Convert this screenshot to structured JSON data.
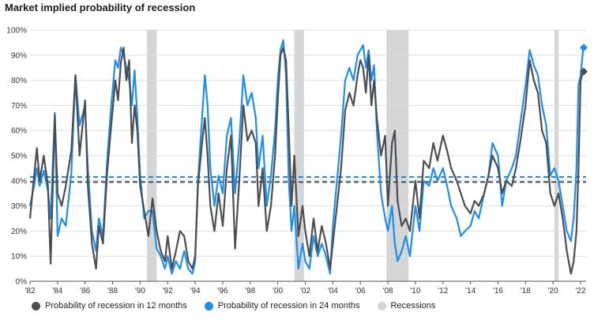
{
  "title": "Market implied probability of recession",
  "legend": {
    "s12": "Probability of recession in 12 months",
    "s24": "Probability of recession in 24 months",
    "rec": "Recessions"
  },
  "colors": {
    "s12": "#4a4d52",
    "s24": "#1f8ee8",
    "rec": "#d4d5d7"
  },
  "chart_data": {
    "type": "line",
    "xlim": [
      1982,
      2022.4
    ],
    "ylim": [
      0,
      100
    ],
    "yticks": [
      "0%",
      "10%",
      "20%",
      "30%",
      "40%",
      "50%",
      "60%",
      "70%",
      "80%",
      "90%",
      "100%"
    ],
    "xticks": [
      {
        "x": 1982,
        "label": "'82"
      },
      {
        "x": 1984,
        "label": "'84"
      },
      {
        "x": 1986,
        "label": "'86"
      },
      {
        "x": 1988,
        "label": "'88"
      },
      {
        "x": 1990,
        "label": "'90"
      },
      {
        "x": 1992,
        "label": "'92"
      },
      {
        "x": 1994,
        "label": "'94"
      },
      {
        "x": 1996,
        "label": "'96"
      },
      {
        "x": 1998,
        "label": "'98"
      },
      {
        "x": 2000,
        "label": "'00"
      },
      {
        "x": 2002,
        "label": "'02"
      },
      {
        "x": 2004,
        "label": "'04"
      },
      {
        "x": 2006,
        "label": "'06"
      },
      {
        "x": 2008,
        "label": "'08"
      },
      {
        "x": 2010,
        "label": "'10"
      },
      {
        "x": 2012,
        "label": "'12"
      },
      {
        "x": 2014,
        "label": "'14"
      },
      {
        "x": 2016,
        "label": "'16"
      },
      {
        "x": 2018,
        "label": "'18"
      },
      {
        "x": 2020,
        "label": "'20"
      },
      {
        "x": 2022,
        "label": "'22"
      }
    ],
    "recessions": [
      [
        1990.5,
        1991.2
      ],
      [
        2001.2,
        2001.9
      ],
      [
        2007.9,
        2009.5
      ],
      [
        2020.1,
        2020.4
      ]
    ],
    "averages": {
      "s12": 39.5,
      "s24": 41.5
    },
    "latest": {
      "s12": 83.5,
      "s24": 93
    },
    "series": [
      {
        "name": "Probability of recession in 12 months",
        "key": "s12",
        "points": [
          [
            1982,
            25
          ],
          [
            1982.3,
            42
          ],
          [
            1982.5,
            53
          ],
          [
            1982.7,
            40
          ],
          [
            1983,
            50
          ],
          [
            1983.3,
            38
          ],
          [
            1983.5,
            7
          ],
          [
            1983.8,
            66
          ],
          [
            1984,
            35
          ],
          [
            1984.3,
            30
          ],
          [
            1984.6,
            38
          ],
          [
            1985,
            52
          ],
          [
            1985.3,
            82
          ],
          [
            1985.6,
            50
          ],
          [
            1986,
            72
          ],
          [
            1986.2,
            38
          ],
          [
            1986.5,
            15
          ],
          [
            1986.8,
            5
          ],
          [
            1987,
            22
          ],
          [
            1987.3,
            15
          ],
          [
            1987.6,
            43
          ],
          [
            1987.9,
            62
          ],
          [
            1988.2,
            80
          ],
          [
            1988.4,
            72
          ],
          [
            1988.6,
            87
          ],
          [
            1988.8,
            93
          ],
          [
            1989,
            80
          ],
          [
            1989.2,
            88
          ],
          [
            1989.4,
            55
          ],
          [
            1989.6,
            70
          ],
          [
            1989.8,
            60
          ],
          [
            1990,
            38
          ],
          [
            1990.3,
            28
          ],
          [
            1990.6,
            18
          ],
          [
            1990.9,
            33
          ],
          [
            1991.2,
            20
          ],
          [
            1991.5,
            12
          ],
          [
            1991.8,
            8
          ],
          [
            1992,
            18
          ],
          [
            1992.3,
            5
          ],
          [
            1992.6,
            12
          ],
          [
            1992.9,
            20
          ],
          [
            1993.2,
            18
          ],
          [
            1993.5,
            8
          ],
          [
            1993.8,
            5
          ],
          [
            1994,
            10
          ],
          [
            1994.2,
            38
          ],
          [
            1994.5,
            55
          ],
          [
            1994.7,
            65
          ],
          [
            1994.9,
            50
          ],
          [
            1995.1,
            30
          ],
          [
            1995.4,
            20
          ],
          [
            1995.7,
            35
          ],
          [
            1996,
            22
          ],
          [
            1996.3,
            45
          ],
          [
            1996.6,
            58
          ],
          [
            1996.9,
            13
          ],
          [
            1997.2,
            40
          ],
          [
            1997.5,
            70
          ],
          [
            1997.8,
            56
          ],
          [
            1998.1,
            60
          ],
          [
            1998.4,
            55
          ],
          [
            1998.6,
            30
          ],
          [
            1998.9,
            45
          ],
          [
            1999.2,
            20
          ],
          [
            1999.5,
            30
          ],
          [
            1999.8,
            50
          ],
          [
            2000,
            72
          ],
          [
            2000.2,
            90
          ],
          [
            2000.4,
            93
          ],
          [
            2000.6,
            88
          ],
          [
            2000.8,
            60
          ],
          [
            2001,
            30
          ],
          [
            2001.2,
            50
          ],
          [
            2001.5,
            18
          ],
          [
            2001.8,
            30
          ],
          [
            2002,
            20
          ],
          [
            2002.3,
            10
          ],
          [
            2002.6,
            25
          ],
          [
            2002.9,
            12
          ],
          [
            2003.2,
            22
          ],
          [
            2003.5,
            15
          ],
          [
            2003.8,
            5
          ],
          [
            2004,
            15
          ],
          [
            2004.3,
            30
          ],
          [
            2004.6,
            45
          ],
          [
            2004.9,
            68
          ],
          [
            2005.2,
            75
          ],
          [
            2005.5,
            70
          ],
          [
            2005.8,
            82
          ],
          [
            2006,
            88
          ],
          [
            2006.2,
            85
          ],
          [
            2006.4,
            75
          ],
          [
            2006.6,
            90
          ],
          [
            2006.8,
            70
          ],
          [
            2007,
            80
          ],
          [
            2007.2,
            65
          ],
          [
            2007.5,
            50
          ],
          [
            2007.8,
            58
          ],
          [
            2008,
            30
          ],
          [
            2008.3,
            55
          ],
          [
            2008.5,
            60
          ],
          [
            2008.7,
            32
          ],
          [
            2009,
            22
          ],
          [
            2009.3,
            25
          ],
          [
            2009.6,
            20
          ],
          [
            2010,
            40
          ],
          [
            2010.3,
            25
          ],
          [
            2010.6,
            48
          ],
          [
            2011,
            45
          ],
          [
            2011.3,
            55
          ],
          [
            2011.6,
            48
          ],
          [
            2012,
            58
          ],
          [
            2012.3,
            52
          ],
          [
            2012.6,
            45
          ],
          [
            2013,
            40
          ],
          [
            2013.3,
            35
          ],
          [
            2013.6,
            30
          ],
          [
            2014,
            27
          ],
          [
            2014.3,
            32
          ],
          [
            2014.6,
            30
          ],
          [
            2015,
            35
          ],
          [
            2015.3,
            42
          ],
          [
            2015.6,
            50
          ],
          [
            2016,
            45
          ],
          [
            2016.3,
            35
          ],
          [
            2016.6,
            40
          ],
          [
            2017,
            38
          ],
          [
            2017.3,
            45
          ],
          [
            2017.6,
            55
          ],
          [
            2018,
            70
          ],
          [
            2018.3,
            88
          ],
          [
            2018.6,
            80
          ],
          [
            2018.9,
            75
          ],
          [
            2019.2,
            60
          ],
          [
            2019.5,
            55
          ],
          [
            2019.8,
            35
          ],
          [
            2020.1,
            30
          ],
          [
            2020.4,
            35
          ],
          [
            2020.7,
            25
          ],
          [
            2021,
            12
          ],
          [
            2021.3,
            3
          ],
          [
            2021.5,
            8
          ],
          [
            2021.7,
            20
          ],
          [
            2021.85,
            45
          ],
          [
            2022,
            80
          ],
          [
            2022.2,
            83.5
          ]
        ]
      },
      {
        "name": "Probability of recession in 24 months",
        "key": "s24",
        "points": [
          [
            1982,
            30
          ],
          [
            1982.3,
            38
          ],
          [
            1982.5,
            45
          ],
          [
            1982.7,
            38
          ],
          [
            1983,
            44
          ],
          [
            1983.3,
            36
          ],
          [
            1983.5,
            25
          ],
          [
            1983.8,
            67
          ],
          [
            1984,
            18
          ],
          [
            1984.3,
            25
          ],
          [
            1984.6,
            22
          ],
          [
            1985,
            43
          ],
          [
            1985.3,
            82
          ],
          [
            1985.6,
            62
          ],
          [
            1986,
            70
          ],
          [
            1986.2,
            45
          ],
          [
            1986.5,
            20
          ],
          [
            1986.8,
            12
          ],
          [
            1987,
            25
          ],
          [
            1987.3,
            18
          ],
          [
            1987.6,
            48
          ],
          [
            1987.9,
            70
          ],
          [
            1988.2,
            88
          ],
          [
            1988.4,
            85
          ],
          [
            1988.6,
            93
          ],
          [
            1988.8,
            90
          ],
          [
            1989,
            85
          ],
          [
            1989.2,
            80
          ],
          [
            1989.4,
            70
          ],
          [
            1989.6,
            84
          ],
          [
            1989.8,
            65
          ],
          [
            1990,
            42
          ],
          [
            1990.3,
            25
          ],
          [
            1990.6,
            28
          ],
          [
            1990.9,
            28
          ],
          [
            1991.2,
            13
          ],
          [
            1991.5,
            10
          ],
          [
            1991.8,
            5
          ],
          [
            1992,
            10
          ],
          [
            1992.3,
            3
          ],
          [
            1992.6,
            8
          ],
          [
            1992.9,
            5
          ],
          [
            1993.2,
            12
          ],
          [
            1993.5,
            5
          ],
          [
            1993.8,
            3
          ],
          [
            1994,
            8
          ],
          [
            1994.2,
            40
          ],
          [
            1994.5,
            65
          ],
          [
            1994.7,
            82
          ],
          [
            1994.9,
            70
          ],
          [
            1995.1,
            45
          ],
          [
            1995.4,
            30
          ],
          [
            1995.7,
            42
          ],
          [
            1996,
            35
          ],
          [
            1996.3,
            58
          ],
          [
            1996.6,
            65
          ],
          [
            1996.9,
            35
          ],
          [
            1997.2,
            55
          ],
          [
            1997.5,
            82
          ],
          [
            1997.8,
            70
          ],
          [
            1998.1,
            75
          ],
          [
            1998.4,
            65
          ],
          [
            1998.6,
            45
          ],
          [
            1998.9,
            58
          ],
          [
            1999.2,
            30
          ],
          [
            1999.5,
            42
          ],
          [
            1999.8,
            60
          ],
          [
            2000,
            80
          ],
          [
            2000.2,
            92
          ],
          [
            2000.4,
            96
          ],
          [
            2000.6,
            82
          ],
          [
            2000.8,
            40
          ],
          [
            2001,
            20
          ],
          [
            2001.2,
            30
          ],
          [
            2001.5,
            5
          ],
          [
            2001.8,
            15
          ],
          [
            2002,
            8
          ],
          [
            2002.3,
            5
          ],
          [
            2002.6,
            18
          ],
          [
            2002.9,
            10
          ],
          [
            2003.2,
            15
          ],
          [
            2003.5,
            10
          ],
          [
            2003.8,
            3
          ],
          [
            2004,
            22
          ],
          [
            2004.3,
            40
          ],
          [
            2004.6,
            58
          ],
          [
            2004.9,
            80
          ],
          [
            2005.2,
            85
          ],
          [
            2005.5,
            80
          ],
          [
            2005.8,
            90
          ],
          [
            2006,
            92
          ],
          [
            2006.2,
            94
          ],
          [
            2006.4,
            85
          ],
          [
            2006.6,
            92
          ],
          [
            2006.8,
            80
          ],
          [
            2007,
            86
          ],
          [
            2007.2,
            60
          ],
          [
            2007.5,
            35
          ],
          [
            2007.8,
            25
          ],
          [
            2008,
            20
          ],
          [
            2008.3,
            30
          ],
          [
            2008.5,
            15
          ],
          [
            2008.7,
            8
          ],
          [
            2009,
            12
          ],
          [
            2009.3,
            18
          ],
          [
            2009.6,
            10
          ],
          [
            2010,
            30
          ],
          [
            2010.3,
            20
          ],
          [
            2010.6,
            40
          ],
          [
            2011,
            38
          ],
          [
            2011.3,
            45
          ],
          [
            2011.6,
            40
          ],
          [
            2012,
            45
          ],
          [
            2012.3,
            38
          ],
          [
            2012.6,
            30
          ],
          [
            2013,
            25
          ],
          [
            2013.3,
            18
          ],
          [
            2013.6,
            20
          ],
          [
            2014,
            22
          ],
          [
            2014.3,
            28
          ],
          [
            2014.6,
            25
          ],
          [
            2015,
            35
          ],
          [
            2015.3,
            42
          ],
          [
            2015.6,
            55
          ],
          [
            2016,
            50
          ],
          [
            2016.3,
            30
          ],
          [
            2016.6,
            40
          ],
          [
            2017,
            45
          ],
          [
            2017.3,
            50
          ],
          [
            2017.6,
            62
          ],
          [
            2018,
            78
          ],
          [
            2018.3,
            92
          ],
          [
            2018.6,
            86
          ],
          [
            2018.9,
            82
          ],
          [
            2019.2,
            70
          ],
          [
            2019.5,
            62
          ],
          [
            2019.8,
            42
          ],
          [
            2020.1,
            45
          ],
          [
            2020.4,
            40
          ],
          [
            2020.7,
            30
          ],
          [
            2021,
            20
          ],
          [
            2021.3,
            16
          ],
          [
            2021.5,
            25
          ],
          [
            2021.7,
            45
          ],
          [
            2021.85,
            78
          ],
          [
            2022,
            82
          ],
          [
            2022.2,
            93
          ]
        ]
      }
    ]
  }
}
